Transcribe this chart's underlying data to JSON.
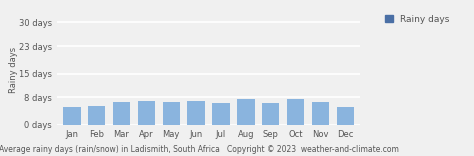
{
  "months": [
    "Jan",
    "Feb",
    "Mar",
    "Apr",
    "May",
    "Jun",
    "Jul",
    "Aug",
    "Sep",
    "Oct",
    "Nov",
    "Dec"
  ],
  "rainy_days": [
    5.2,
    5.6,
    6.7,
    7.0,
    6.6,
    7.0,
    6.5,
    7.7,
    6.5,
    7.6,
    6.6,
    5.1
  ],
  "bar_color": "#8ab4de",
  "legend_color": "#4a6fa5",
  "yticks": [
    0,
    8,
    15,
    23,
    30
  ],
  "ylabels": [
    "0 days",
    "8 days",
    "15 days",
    "23 days",
    "30 days"
  ],
  "ylim": [
    0,
    32
  ],
  "title": "Average rainy days (rain/snow) in Ladismith, South Africa   Copyright © 2023  weather-and-climate.com",
  "ylabel": "Rainy days",
  "legend_label": "Rainy days",
  "background_color": "#f0f0f0",
  "grid_color": "#ffffff",
  "title_fontsize": 5.5,
  "ylabel_fontsize": 6.0,
  "tick_fontsize": 6.0,
  "legend_fontsize": 6.5
}
